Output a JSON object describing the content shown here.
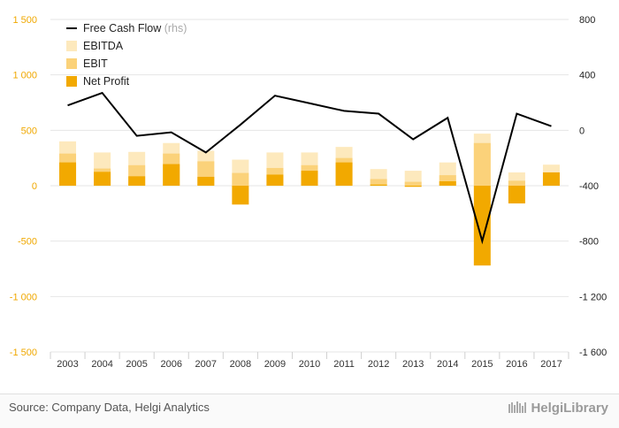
{
  "chart_data": {
    "type": "bar",
    "categories": [
      "2003",
      "2004",
      "2005",
      "2006",
      "2007",
      "2008",
      "2009",
      "2010",
      "2011",
      "2012",
      "2013",
      "2014",
      "2015",
      "2016",
      "2017"
    ],
    "series": [
      {
        "name": "EBITDA",
        "kind": "bar",
        "color": "#fde9bd",
        "values": [
          400,
          300,
          305,
          385,
          315,
          235,
          300,
          300,
          350,
          150,
          135,
          210,
          470,
          120,
          190
        ]
      },
      {
        "name": "EBIT",
        "kind": "bar",
        "color": "#fbd27a",
        "values": [
          290,
          155,
          185,
          290,
          220,
          115,
          160,
          185,
          250,
          60,
          35,
          95,
          385,
          45,
          120
        ]
      },
      {
        "name": "Net Profit",
        "kind": "bar",
        "color": "#f2a900",
        "values": [
          210,
          125,
          85,
          195,
          80,
          -170,
          100,
          135,
          210,
          10,
          -10,
          40,
          -720,
          -160,
          120
        ]
      },
      {
        "name": "Free Cash Flow",
        "legend_suffix": "(rhs)",
        "kind": "line",
        "axis": "right",
        "color": "#000000",
        "values": [
          180,
          270,
          -40,
          -15,
          -160,
          40,
          250,
          195,
          140,
          120,
          -65,
          90,
          -800,
          120,
          30
        ]
      }
    ],
    "ylim_left": [
      -1500,
      1500
    ],
    "ylim_right": [
      -1600,
      800
    ],
    "yticks_left": [
      1500,
      1000,
      500,
      0,
      -500,
      -1000,
      -1500
    ],
    "yticks_left_labels": [
      "1 500",
      "1 000",
      "500",
      "0",
      "-500",
      "-1 000",
      "-1 500"
    ],
    "yticks_right": [
      800,
      400,
      0,
      -400,
      -800,
      -1200,
      -1600
    ],
    "yticks_right_labels": [
      "800",
      "400",
      "0",
      "-400",
      "-800",
      "-1 200",
      "-1 600"
    ],
    "colors": {
      "left_axis": "#f0a800",
      "grid": "#e6e6e6"
    },
    "legend_position": "top-left"
  },
  "footer": {
    "source": "Source: Company Data, Helgi Analytics",
    "logo": "HelgiLibrary"
  }
}
